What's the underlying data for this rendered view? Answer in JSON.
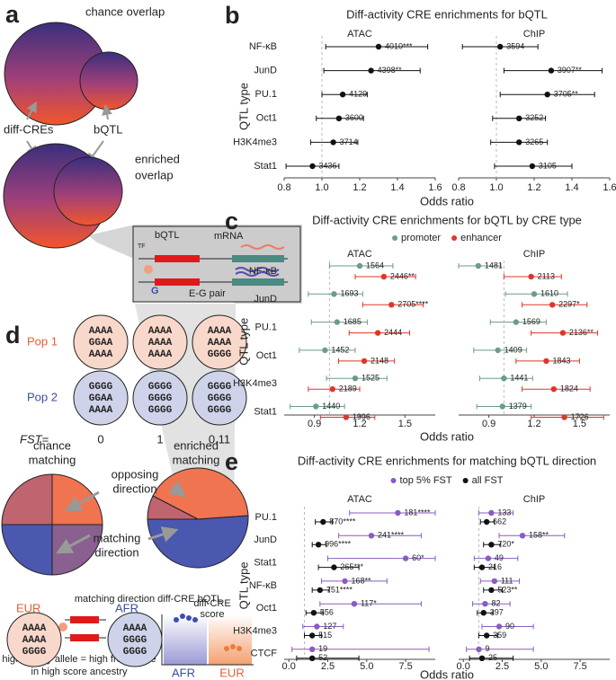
{
  "chart_data": [
    {
      "type": "forest",
      "panel": "b",
      "title": "Diff-activity CRE enrichments for bQTL",
      "ylabel": "QTL type",
      "xlabel": "Odds ratio",
      "refline": 1,
      "categories": [
        "NF-κB",
        "JunD",
        "PU.1",
        "Oct1",
        "H3K4me3",
        "Stat1"
      ],
      "facets": [
        {
          "title": "ATAC",
          "xlim": [
            0.8,
            1.6
          ],
          "xticks": [
            0.8,
            {
              "value": 1,
              "label": "1.0"
            },
            1.2,
            1.4,
            1.6
          ],
          "series": [
            {
              "color": "#111111",
              "values": [
                1.3,
                1.26,
                1.11,
                1.09,
                1.06,
                0.95
              ],
              "lower": [
                1.02,
                1.01,
                1.0,
                0.97,
                0.94,
                0.81
              ],
              "upper": [
                1.56,
                1.52,
                1.24,
                1.22,
                1.19,
                1.09
              ],
              "count_labels": [
                "4010***",
                "4398**",
                "4129",
                "3600",
                "3714",
                "3436"
              ]
            }
          ]
        },
        {
          "title": "ChIP",
          "xlim": [
            0.8,
            1.6
          ],
          "xticks": [
            0.8,
            {
              "value": 1,
              "label": "1.0"
            },
            1.2,
            1.4,
            1.6
          ],
          "series": [
            {
              "color": "#111111",
              "values": [
                1.02,
                1.29,
                1.27,
                1.12,
                1.12,
                1.19
              ],
              "lower": [
                0.82,
                1.04,
                1.02,
                0.98,
                0.97,
                0.99
              ],
              "upper": [
                1.22,
                1.56,
                1.52,
                1.26,
                1.27,
                1.4
              ],
              "count_labels": [
                "3594",
                "3907**",
                "3705**",
                "3252",
                "3265",
                "3105"
              ]
            }
          ]
        }
      ]
    },
    {
      "type": "forest",
      "panel": "c",
      "title": "Diff-activity CRE enrichments for bQTL by CRE type",
      "ylabel": "QTL type",
      "xlabel": "Odds ratio",
      "refline": 1,
      "categories": [
        "NF-κB",
        "JunD",
        "PU.1",
        "Oct1",
        "H3K4me3",
        "Stat1"
      ],
      "facets": [
        {
          "title": "ATAC",
          "xlim": [
            0.7,
            1.7
          ],
          "xticks": [
            0.9,
            1.2,
            1.5
          ],
          "series": [
            {
              "name": "promoter",
              "color": "#6d9c8b",
              "values": [
                1.2,
                1.03,
                1.05,
                0.97,
                1.17,
                0.91
              ],
              "lower": [
                1.0,
                0.86,
                0.88,
                0.8,
                0.98,
                0.74
              ],
              "upper": [
                1.42,
                1.22,
                1.25,
                1.17,
                1.38,
                1.1
              ],
              "count_labels": [
                "1564",
                "1693",
                "1685",
                "1452",
                "1525",
                "1440"
              ]
            },
            {
              "name": "enhancer",
              "color": "#e0352b",
              "values": [
                1.36,
                1.41,
                1.32,
                1.23,
                1.02,
                1.11
              ],
              "lower": [
                1.17,
                1.22,
                1.13,
                1.06,
                0.86,
                0.94
              ],
              "upper": [
                1.57,
                1.62,
                1.53,
                1.43,
                1.2,
                1.3
              ],
              "count_labels": [
                "2446**",
                "2705****",
                "2444",
                "2148",
                "2189",
                "1996"
              ]
            }
          ]
        },
        {
          "title": "ChIP",
          "xlim": [
            0.7,
            1.7
          ],
          "xticks": [
            0.9,
            1.2,
            1.5
          ],
          "series": [
            {
              "name": "promoter",
              "color": "#6d9c8b",
              "values": [
                0.83,
                1.2,
                1.08,
                0.96,
                1.0,
                0.99
              ],
              "lower": [
                0.7,
                1.01,
                0.91,
                0.8,
                0.84,
                0.82
              ],
              "upper": [
                0.98,
                1.42,
                1.28,
                1.15,
                1.19,
                1.18
              ],
              "count_labels": [
                "1481",
                "1610",
                "1569",
                "1409",
                "1441",
                "1379"
              ]
            },
            {
              "name": "enhancer",
              "color": "#e0352b",
              "values": [
                1.18,
                1.32,
                1.39,
                1.28,
                1.33,
                1.4
              ],
              "lower": [
                1.0,
                1.12,
                1.18,
                1.08,
                1.12,
                1.18
              ],
              "upper": [
                1.38,
                1.55,
                1.62,
                1.5,
                1.57,
                1.66
              ],
              "count_labels": [
                "2113",
                "2297*",
                "2136**",
                "1843",
                "1824",
                "1726"
              ]
            }
          ]
        }
      ]
    },
    {
      "type": "forest",
      "panel": "e",
      "title": "Diff-activity CRE enrichments for matching bQTL direction",
      "ylabel": "QTL type",
      "xlabel": "Odds ratio",
      "refline": 1,
      "categories": [
        "PU.1",
        "JunD",
        "Stat1",
        "NF-κB",
        "Oct1",
        "H3K4me3",
        "CTCF"
      ],
      "facets": [
        {
          "title": "ATAC",
          "xlim": [
            -0.3,
            9.4
          ],
          "xticks": [
            {
              "value": 0,
              "label": "0.0"
            },
            2.5,
            {
              "value": 5,
              "label": "5.0"
            },
            7.5
          ],
          "series": [
            {
              "name": "top 5% FST",
              "color": "#8a5cc0",
              "values": [
                7.0,
                5.3,
                7.5,
                3.6,
                4.2,
                1.8,
                1.5
              ],
              "lower": [
                3.9,
                3.2,
                2.5,
                2.1,
                2.0,
                0.9,
                0.2
              ],
              "upper": [
                9.4,
                8.5,
                9.4,
                6.3,
                8.5,
                3.5,
                9.0
              ],
              "count_labels": [
                "181****",
                "241****",
                "60*",
                "168**",
                "117*",
                "127",
                "19"
              ]
            },
            {
              "name": "all FST",
              "color": "#111111",
              "values": [
                2.2,
                1.9,
                2.9,
                2.0,
                1.6,
                1.5,
                1.5
              ],
              "lower": [
                1.7,
                1.5,
                1.9,
                1.5,
                1.1,
                1.0,
                0.5
              ],
              "upper": [
                2.8,
                2.4,
                4.5,
                2.6,
                2.2,
                2.1,
                4.5
              ],
              "count_labels": [
                "870****",
                "996****",
                "265***",
                "751****",
                "556",
                "515",
                "52"
              ]
            }
          ]
        },
        {
          "title": "ChIP",
          "xlim": [
            -0.3,
            9.4
          ],
          "xticks": [
            {
              "value": 0,
              "label": "0.0"
            },
            2.5,
            {
              "value": 5,
              "label": "5.0"
            },
            7.5
          ],
          "series": [
            {
              "name": "top 5% FST",
              "color": "#8a5cc0",
              "values": [
                1.8,
                3.8,
                1.6,
                2.0,
                1.4,
                2.3,
                1.0
              ],
              "lower": [
                1.0,
                2.3,
                0.7,
                1.1,
                0.6,
                1.2,
                0.2
              ],
              "upper": [
                3.2,
                6.5,
                3.5,
                3.6,
                3.0,
                4.5,
                4.5
              ],
              "count_labels": [
                "133",
                "158**",
                "49",
                "111",
                "82",
                "90",
                "9"
              ]
            },
            {
              "name": "all FST",
              "color": "#111111",
              "values": [
                1.5,
                1.8,
                1.2,
                1.8,
                1.3,
                1.5,
                1.2
              ],
              "lower": [
                1.1,
                1.3,
                0.7,
                1.3,
                0.9,
                1.0,
                0.4
              ],
              "upper": [
                2.0,
                2.4,
                2.0,
                2.5,
                1.9,
                2.2,
                3.2
              ],
              "count_labels": [
                "662",
                "720*",
                "216",
                "523**",
                "397",
                "359",
                "25"
              ]
            }
          ]
        }
      ]
    }
  ],
  "diagram": {
    "a": {
      "label": "a",
      "chance": "chance overlap",
      "diff_cres": "diff-CREs",
      "bqtl": "bQTL",
      "enriched": [
        "enriched",
        "overlap"
      ],
      "inset": {
        "tf": "TF",
        "bqtl": "bQTL",
        "mrna": "mRNA",
        "allele": "G",
        "pair": "E-G pair"
      }
    },
    "d": {
      "label": "d",
      "pop1": "Pop 1",
      "pop2": "Pop 2",
      "fst": "FST=",
      "fst_values": [
        "0",
        "1",
        "0.11"
      ],
      "pop1_seqs": [
        [
          "AAAA",
          "GGAA",
          "AAAA"
        ],
        [
          "AAAA",
          "AAAA",
          "AAAA"
        ],
        [
          "AAAA",
          "AAAA",
          "GGGG"
        ]
      ],
      "pop2_seqs": [
        [
          "GGGG",
          "GGAA",
          "AAAA"
        ],
        [
          "GGGG",
          "GGGG",
          "GGGG"
        ],
        [
          "GGGG",
          "GGGG",
          "GGGG"
        ]
      ],
      "chance": [
        "chance",
        "matching"
      ],
      "enriched": [
        "enriched",
        "matching"
      ],
      "opposing": [
        "opposing",
        "direction"
      ],
      "matching": [
        "matching",
        "direction"
      ],
      "bottom_title": "matching direction diff-CRE bQTL",
      "eur": "EUR",
      "afr": "AFR",
      "eur_seqs": [
        "AAAA",
        "AAAA",
        "GGGG"
      ],
      "afr_seqs": [
        "AAAA",
        "GGGG",
        "GGGG"
      ],
      "score": [
        "diff-CRE",
        "score"
      ],
      "score_afr": "AFR",
      "score_eur": "EUR",
      "caption": [
        "high affinity allele = high freq. allele",
        "in high score ancestry"
      ]
    }
  }
}
